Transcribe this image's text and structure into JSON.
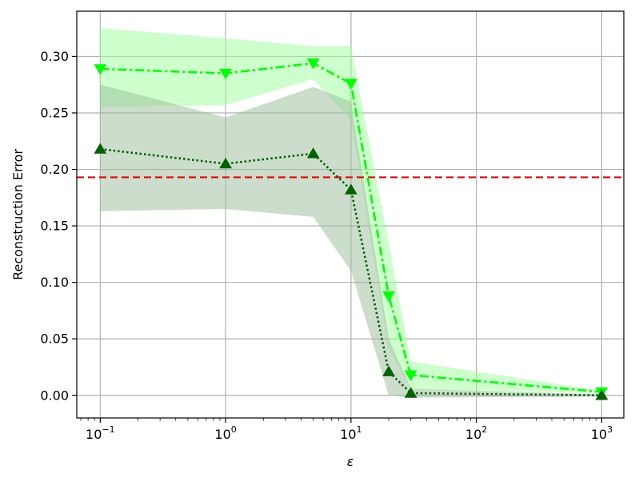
{
  "chart_data": {
    "type": "line",
    "title": "",
    "xlabel": "ε",
    "ylabel": "Reconstruction Error",
    "xscale": "log",
    "xlim": [
      0.065,
      1500
    ],
    "ylim": [
      -0.02,
      0.34
    ],
    "grid": true,
    "x_ticks": [
      {
        "value": 0.1,
        "base": "10",
        "exp": "−1"
      },
      {
        "value": 1,
        "base": "10",
        "exp": "0"
      },
      {
        "value": 10,
        "base": "10",
        "exp": "1"
      },
      {
        "value": 100,
        "base": "10",
        "exp": "2"
      },
      {
        "value": 1000,
        "base": "10",
        "exp": "3"
      }
    ],
    "y_ticks": [
      {
        "value": 0.0,
        "label": "0.00"
      },
      {
        "value": 0.05,
        "label": "0.05"
      },
      {
        "value": 0.1,
        "label": "0.10"
      },
      {
        "value": 0.15,
        "label": "0.15"
      },
      {
        "value": 0.2,
        "label": "0.20"
      },
      {
        "value": 0.25,
        "label": "0.25"
      },
      {
        "value": 0.3,
        "label": "0.30"
      }
    ],
    "x": [
      0.1,
      1,
      5,
      10,
      20,
      30,
      1000
    ],
    "series": [
      {
        "color": "#00ff00",
        "band_color": "#99ff99",
        "line_style": "dashdot",
        "marker": "triangle-down",
        "values": [
          0.289,
          0.285,
          0.294,
          0.276,
          0.088,
          0.018,
          0.003
        ],
        "upper": [
          0.325,
          0.316,
          0.309,
          0.309,
          0.135,
          0.03,
          0.004
        ],
        "lower": [
          0.255,
          0.257,
          0.28,
          0.243,
          0.041,
          0.006,
          0.002
        ]
      },
      {
        "color": "#006400",
        "band_color": "#99bb99",
        "line_style": "dotted",
        "marker": "triangle-up",
        "values": [
          0.218,
          0.205,
          0.214,
          0.182,
          0.021,
          0.002,
          0.0
        ],
        "upper": [
          0.275,
          0.246,
          0.273,
          0.26,
          0.05,
          0.006,
          0.001
        ],
        "lower": [
          0.163,
          0.165,
          0.158,
          0.11,
          0.0,
          -0.002,
          -0.001
        ]
      }
    ],
    "reference_line": {
      "y": 0.193,
      "color": "#ee0000",
      "style": "dashed"
    }
  }
}
